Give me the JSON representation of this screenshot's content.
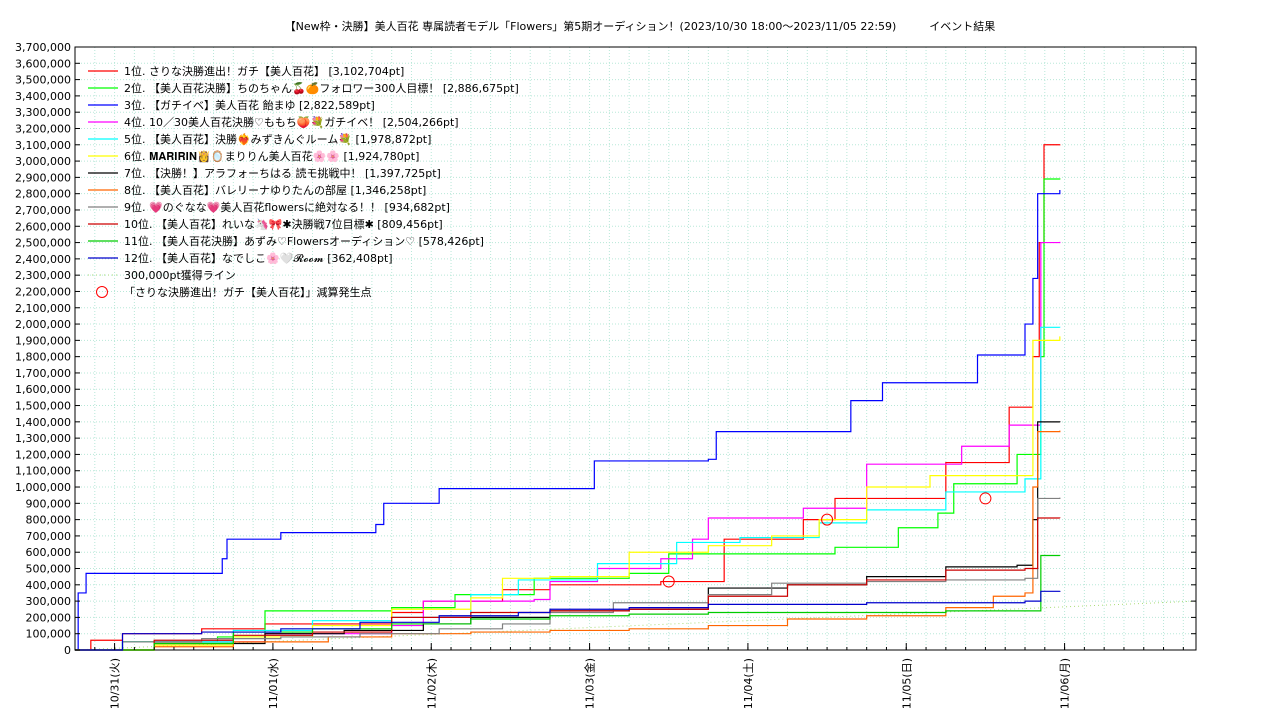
{
  "chart_data": {
    "type": "line",
    "title": "【New枠・決勝】美人百花 専属読者モデル「Flowers」第5期オーディション！(2023/10/30 18:00〜2023/11/05 22:59)　　　イベント結果",
    "xlabel": "",
    "ylabel": "",
    "ylim": [
      0,
      3700000
    ],
    "xlim": [
      0,
      7.08
    ],
    "grid": true,
    "legend_position": "top-left",
    "y_ticks": [
      "0",
      "100,000",
      "200,000",
      "300,000",
      "400,000",
      "500,000",
      "600,000",
      "700,000",
      "800,000",
      "900,000",
      "1,000,000",
      "1,100,000",
      "1,200,000",
      "1,300,000",
      "1,400,000",
      "1,500,000",
      "1,600,000",
      "1,700,000",
      "1,800,000",
      "1,900,000",
      "2,000,000",
      "2,100,000",
      "2,200,000",
      "2,300,000",
      "2,400,000",
      "2,500,000",
      "2,600,000",
      "2,700,000",
      "2,800,000",
      "2,900,000",
      "3,000,000",
      "3,100,000",
      "3,200,000",
      "3,300,000",
      "3,400,000",
      "3,500,000",
      "3,600,000",
      "3,700,000"
    ],
    "x_ticks": [
      {
        "label": "10/31(火)",
        "x": 0.25
      },
      {
        "label": "11/01(水)",
        "x": 1.25
      },
      {
        "label": "11/02(木)",
        "x": 2.25
      },
      {
        "label": "11/03(金)",
        "x": 3.25
      },
      {
        "label": "11/04(土)",
        "x": 4.25
      },
      {
        "label": "11/05(日)",
        "x": 5.25
      },
      {
        "label": "11/06(月)",
        "x": 6.25
      }
    ],
    "series": [
      {
        "name": "1位. さりな決勝進出！ガチ【美人百花】 [3,102,704pt]",
        "color": "#ff0000",
        "points": [
          [
            0,
            0
          ],
          [
            0.1,
            60000
          ],
          [
            0.3,
            100000
          ],
          [
            0.8,
            130000
          ],
          [
            1.2,
            160000
          ],
          [
            2.0,
            230000
          ],
          [
            2.2,
            300000
          ],
          [
            2.7,
            370000
          ],
          [
            3.0,
            400000
          ],
          [
            3.7,
            420000
          ],
          [
            4.1,
            680000
          ],
          [
            4.6,
            800000
          ],
          [
            4.8,
            930000
          ],
          [
            5.3,
            930000
          ],
          [
            5.5,
            1150000
          ],
          [
            5.8,
            1150000
          ],
          [
            5.9,
            1490000
          ],
          [
            6.0,
            1490000
          ],
          [
            6.05,
            1800000
          ],
          [
            6.09,
            2500000
          ],
          [
            6.12,
            3100000
          ],
          [
            6.22,
            3102704
          ]
        ]
      },
      {
        "name": "2位. 【美人百花決勝】ちのちゃん🍒🍊フォロワー300人目標！ [2,886,675pt]",
        "color": "#00ff00",
        "points": [
          [
            0,
            0
          ],
          [
            0.3,
            50000
          ],
          [
            0.9,
            80000
          ],
          [
            1.2,
            240000
          ],
          [
            2.0,
            260000
          ],
          [
            2.4,
            340000
          ],
          [
            2.9,
            440000
          ],
          [
            3.5,
            470000
          ],
          [
            3.75,
            590000
          ],
          [
            4.3,
            590000
          ],
          [
            4.8,
            630000
          ],
          [
            5.2,
            750000
          ],
          [
            5.45,
            840000
          ],
          [
            5.55,
            1020000
          ],
          [
            5.85,
            1020000
          ],
          [
            5.95,
            1200000
          ],
          [
            6.0,
            1200000
          ],
          [
            6.1,
            1800000
          ],
          [
            6.12,
            2890000
          ],
          [
            6.22,
            2886675
          ]
        ]
      },
      {
        "name": "3位. 【ガチイベ】美人百花 飴まゆ [2,822,589pt]",
        "color": "#0000ff",
        "points": [
          [
            0,
            0
          ],
          [
            0.02,
            350000
          ],
          [
            0.07,
            470000
          ],
          [
            0.9,
            470000
          ],
          [
            0.93,
            560000
          ],
          [
            0.96,
            680000
          ],
          [
            1.25,
            680000
          ],
          [
            1.3,
            720000
          ],
          [
            1.85,
            720000
          ],
          [
            1.9,
            770000
          ],
          [
            1.95,
            900000
          ],
          [
            2.2,
            900000
          ],
          [
            2.3,
            990000
          ],
          [
            3.2,
            990000
          ],
          [
            3.28,
            1160000
          ],
          [
            4.0,
            1170000
          ],
          [
            4.05,
            1340000
          ],
          [
            4.8,
            1340000
          ],
          [
            4.9,
            1530000
          ],
          [
            5.1,
            1640000
          ],
          [
            5.6,
            1640000
          ],
          [
            5.7,
            1810000
          ],
          [
            5.95,
            1810000
          ],
          [
            6.0,
            2000000
          ],
          [
            6.05,
            2280000
          ],
          [
            6.08,
            2800000
          ],
          [
            6.22,
            2822589
          ]
        ]
      },
      {
        "name": "4位. 10／30美人百花決勝♡ももち🍑💐ガチイベ！ [2,504,266pt]",
        "color": "#ff00ff",
        "points": [
          [
            0,
            0
          ],
          [
            0.5,
            50000
          ],
          [
            1.2,
            100000
          ],
          [
            2.0,
            150000
          ],
          [
            2.2,
            300000
          ],
          [
            2.9,
            310000
          ],
          [
            3.0,
            420000
          ],
          [
            3.3,
            500000
          ],
          [
            3.7,
            560000
          ],
          [
            3.9,
            680000
          ],
          [
            4.0,
            810000
          ],
          [
            4.5,
            810000
          ],
          [
            4.6,
            870000
          ],
          [
            5.0,
            1140000
          ],
          [
            5.5,
            1140000
          ],
          [
            5.6,
            1250000
          ],
          [
            5.85,
            1250000
          ],
          [
            5.9,
            1380000
          ],
          [
            6.05,
            1380000
          ],
          [
            6.1,
            2500000
          ],
          [
            6.22,
            2504266
          ]
        ]
      },
      {
        "name": "5位. 【美人百花】決勝❤️‍🔥みずきんぐルーム💐 [1,978,872pt]",
        "color": "#00ffff",
        "points": [
          [
            0,
            0
          ],
          [
            0.3,
            50000
          ],
          [
            1.0,
            120000
          ],
          [
            1.5,
            180000
          ],
          [
            2.0,
            200000
          ],
          [
            2.5,
            340000
          ],
          [
            2.8,
            430000
          ],
          [
            3.3,
            530000
          ],
          [
            3.8,
            660000
          ],
          [
            4.2,
            690000
          ],
          [
            4.7,
            780000
          ],
          [
            5.0,
            860000
          ],
          [
            5.5,
            970000
          ],
          [
            5.95,
            970000
          ],
          [
            6.0,
            1050000
          ],
          [
            6.1,
            1980000
          ],
          [
            6.22,
            1978872
          ]
        ]
      },
      {
        "name": "6位. 𝐌𝐀𝐑𝐈𝐑𝐈𝐍👸🪞まりりん美人百花🌸🌸 [1,924,780pt]",
        "color": "#ffff00",
        "points": [
          [
            0,
            0
          ],
          [
            0.5,
            30000
          ],
          [
            1.0,
            80000
          ],
          [
            1.5,
            150000
          ],
          [
            2.0,
            250000
          ],
          [
            2.5,
            320000
          ],
          [
            2.7,
            440000
          ],
          [
            3.0,
            450000
          ],
          [
            3.5,
            600000
          ],
          [
            4.0,
            640000
          ],
          [
            4.4,
            700000
          ],
          [
            4.7,
            800000
          ],
          [
            5.0,
            1000000
          ],
          [
            5.4,
            1070000
          ],
          [
            5.95,
            1070000
          ],
          [
            6.05,
            1900000
          ],
          [
            6.22,
            1924780
          ]
        ]
      },
      {
        "name": "7位. 【決勝！】アラフォーちはる 読モ挑戦中！ [1,397,725pt]",
        "color": "#000000",
        "points": [
          [
            0,
            0
          ],
          [
            0.5,
            40000
          ],
          [
            1.2,
            100000
          ],
          [
            1.7,
            120000
          ],
          [
            2.2,
            160000
          ],
          [
            2.5,
            200000
          ],
          [
            3.0,
            240000
          ],
          [
            3.5,
            250000
          ],
          [
            4.0,
            380000
          ],
          [
            4.5,
            400000
          ],
          [
            5.0,
            450000
          ],
          [
            5.5,
            510000
          ],
          [
            5.95,
            520000
          ],
          [
            6.05,
            800000
          ],
          [
            6.08,
            1400000
          ],
          [
            6.22,
            1397725
          ]
        ]
      },
      {
        "name": "8位. 【美人百花】バレリーナゆりたんの部屋 [1,346,258pt]",
        "color": "#ff6600",
        "points": [
          [
            0,
            0
          ],
          [
            0.5,
            20000
          ],
          [
            1.0,
            50000
          ],
          [
            1.6,
            80000
          ],
          [
            2.0,
            100000
          ],
          [
            2.5,
            110000
          ],
          [
            3.0,
            120000
          ],
          [
            3.5,
            130000
          ],
          [
            4.0,
            150000
          ],
          [
            4.5,
            190000
          ],
          [
            5.0,
            210000
          ],
          [
            5.5,
            260000
          ],
          [
            5.8,
            330000
          ],
          [
            6.0,
            350000
          ],
          [
            6.05,
            1000000
          ],
          [
            6.08,
            1340000
          ],
          [
            6.22,
            1346258
          ]
        ]
      },
      {
        "name": "9位. 💗のぐなな💗美人百花flowersに絶対なる！！ [934,682pt]",
        "color": "#808080",
        "points": [
          [
            0,
            0
          ],
          [
            0.3,
            50000
          ],
          [
            0.8,
            70000
          ],
          [
            1.3,
            80000
          ],
          [
            1.8,
            100000
          ],
          [
            2.3,
            130000
          ],
          [
            2.7,
            160000
          ],
          [
            3.0,
            230000
          ],
          [
            3.4,
            290000
          ],
          [
            4.0,
            340000
          ],
          [
            4.4,
            410000
          ],
          [
            5.0,
            420000
          ],
          [
            5.5,
            430000
          ],
          [
            6.0,
            440000
          ],
          [
            6.08,
            930000
          ],
          [
            6.22,
            934682
          ]
        ]
      },
      {
        "name": "10位. 【美人百花】れいな🦄🎀✱決勝戦7位目標✱ [809,456pt]",
        "color": "#cc0000",
        "points": [
          [
            0,
            0
          ],
          [
            0.5,
            60000
          ],
          [
            1.0,
            90000
          ],
          [
            1.5,
            110000
          ],
          [
            2.0,
            200000
          ],
          [
            2.5,
            230000
          ],
          [
            3.0,
            240000
          ],
          [
            3.5,
            250000
          ],
          [
            4.0,
            330000
          ],
          [
            4.5,
            400000
          ],
          [
            5.0,
            430000
          ],
          [
            5.5,
            490000
          ],
          [
            6.0,
            500000
          ],
          [
            6.08,
            810000
          ],
          [
            6.22,
            809456
          ]
        ]
      },
      {
        "name": "11位. 【美人百花決勝】あずみ♡Flowersオーディション♡ [578,426pt]",
        "color": "#00cc00",
        "points": [
          [
            0,
            0
          ],
          [
            0.5,
            40000
          ],
          [
            1.0,
            110000
          ],
          [
            1.5,
            130000
          ],
          [
            2.0,
            160000
          ],
          [
            2.5,
            190000
          ],
          [
            3.0,
            210000
          ],
          [
            3.5,
            220000
          ],
          [
            4.0,
            230000
          ],
          [
            4.5,
            230000
          ],
          [
            5.0,
            230000
          ],
          [
            5.5,
            240000
          ],
          [
            6.05,
            240000
          ],
          [
            6.1,
            580000
          ],
          [
            6.22,
            578426
          ]
        ]
      },
      {
        "name": "12位. 【美人百花】なでしこ🌸🤍𝓡𝓸𝓸𝓶 [362,408pt]",
        "color": "#0000cc",
        "points": [
          [
            0,
            0
          ],
          [
            0.3,
            100000
          ],
          [
            0.8,
            110000
          ],
          [
            1.3,
            130000
          ],
          [
            1.8,
            170000
          ],
          [
            2.3,
            210000
          ],
          [
            2.8,
            230000
          ],
          [
            3.0,
            250000
          ],
          [
            3.5,
            260000
          ],
          [
            4.0,
            280000
          ],
          [
            4.5,
            280000
          ],
          [
            5.0,
            290000
          ],
          [
            5.5,
            290000
          ],
          [
            6.0,
            300000
          ],
          [
            6.1,
            360000
          ],
          [
            6.22,
            362408
          ]
        ]
      }
    ],
    "reference_line": {
      "name": "300,000pt獲得ライン",
      "color": "#aadd77",
      "points": [
        [
          0,
          0
        ],
        [
          7.08,
          300000
        ]
      ]
    },
    "markers": {
      "name": "「さりな決勝進出！ガチ【美人百花】」減算発生点",
      "color": "#ff0000",
      "points": [
        [
          3.75,
          420000
        ],
        [
          4.75,
          800000
        ],
        [
          5.75,
          930000
        ]
      ]
    }
  }
}
